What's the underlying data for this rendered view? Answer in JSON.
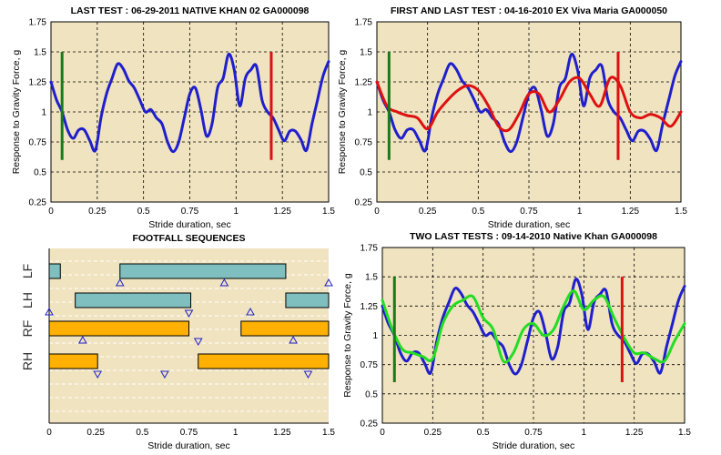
{
  "chart_data": [
    {
      "type": "line",
      "title": "LAST TEST : 06-29-2011 NATIVE KHAN 02 GA000098",
      "xlabel": "Stride duration, sec",
      "ylabel": "Response to Gravity Force, g",
      "xlim": [
        0,
        1.5
      ],
      "ylim": [
        0.25,
        1.75
      ],
      "x_ticks": [
        "0",
        "0.25",
        "0.5",
        "0.75",
        "1",
        "1.25",
        "1.5"
      ],
      "y_ticks": [
        "0.25",
        "0.5",
        "0.75",
        "1",
        "1.25",
        "1.5",
        "1.75"
      ],
      "grid": true,
      "markers": [
        {
          "x": 0.06,
          "y1": 0.6,
          "y2": 1.5,
          "color": "#1a7a1a"
        },
        {
          "x": 1.19,
          "y1": 0.6,
          "y2": 1.5,
          "color": "#dd1111"
        }
      ],
      "series": [
        {
          "color": "#1f1fcc",
          "x": [
            0,
            0.03,
            0.06,
            0.09,
            0.12,
            0.15,
            0.18,
            0.21,
            0.24,
            0.27,
            0.3,
            0.33,
            0.36,
            0.39,
            0.42,
            0.45,
            0.48,
            0.51,
            0.54,
            0.57,
            0.6,
            0.63,
            0.66,
            0.69,
            0.72,
            0.75,
            0.78,
            0.81,
            0.84,
            0.87,
            0.9,
            0.93,
            0.96,
            0.99,
            1.02,
            1.05,
            1.08,
            1.11,
            1.14,
            1.17,
            1.2,
            1.23,
            1.26,
            1.29,
            1.32,
            1.35,
            1.38,
            1.41,
            1.44,
            1.47,
            1.5
          ],
          "y": [
            1.25,
            1.1,
            1.0,
            0.85,
            0.78,
            0.85,
            0.85,
            0.76,
            0.68,
            0.95,
            1.15,
            1.28,
            1.4,
            1.36,
            1.26,
            1.2,
            1.1,
            1.0,
            1.02,
            0.95,
            0.9,
            0.75,
            0.67,
            0.75,
            0.95,
            1.15,
            1.2,
            1.02,
            0.8,
            0.9,
            1.2,
            1.28,
            1.48,
            1.35,
            1.05,
            1.28,
            1.35,
            1.38,
            1.1,
            1.0,
            0.95,
            0.85,
            0.76,
            0.84,
            0.84,
            0.77,
            0.68,
            0.9,
            1.1,
            1.3,
            1.42
          ]
        }
      ]
    },
    {
      "type": "line",
      "title": "FIRST AND LAST TEST : 04-16-2010 EX Viva Maria GA000050",
      "xlabel": "Stride duration, sec",
      "ylabel": "Response to Gravity Force, g",
      "xlim": [
        0,
        1.5
      ],
      "ylim": [
        0.25,
        1.75
      ],
      "x_ticks": [
        "0",
        "0.25",
        "0.5",
        "0.75",
        "1",
        "1.25",
        "1.5"
      ],
      "y_ticks": [
        "0.25",
        "0.5",
        "0.75",
        "1",
        "1.25",
        "1.5",
        "1.75"
      ],
      "grid": true,
      "markers": [
        {
          "x": 0.06,
          "y1": 0.6,
          "y2": 1.5,
          "color": "#1a7a1a"
        },
        {
          "x": 1.19,
          "y1": 0.6,
          "y2": 1.5,
          "color": "#dd1111"
        }
      ],
      "series": [
        {
          "color": "#1f1fcc",
          "x": [
            0,
            0.03,
            0.06,
            0.09,
            0.12,
            0.15,
            0.18,
            0.21,
            0.24,
            0.27,
            0.3,
            0.33,
            0.36,
            0.39,
            0.42,
            0.45,
            0.48,
            0.51,
            0.54,
            0.57,
            0.6,
            0.63,
            0.66,
            0.69,
            0.72,
            0.75,
            0.78,
            0.81,
            0.84,
            0.87,
            0.9,
            0.93,
            0.96,
            0.99,
            1.02,
            1.05,
            1.08,
            1.11,
            1.14,
            1.17,
            1.2,
            1.23,
            1.26,
            1.29,
            1.32,
            1.35,
            1.38,
            1.41,
            1.44,
            1.47,
            1.5
          ],
          "y": [
            1.25,
            1.1,
            1.0,
            0.85,
            0.78,
            0.85,
            0.85,
            0.76,
            0.68,
            0.95,
            1.15,
            1.28,
            1.4,
            1.36,
            1.26,
            1.2,
            1.1,
            1.0,
            1.02,
            0.95,
            0.9,
            0.75,
            0.67,
            0.75,
            0.95,
            1.15,
            1.2,
            1.02,
            0.8,
            0.9,
            1.2,
            1.28,
            1.48,
            1.35,
            1.05,
            1.28,
            1.35,
            1.38,
            1.1,
            1.0,
            0.95,
            0.85,
            0.76,
            0.84,
            0.84,
            0.77,
            0.68,
            0.9,
            1.1,
            1.3,
            1.42
          ]
        },
        {
          "color": "#dd1111",
          "x": [
            0,
            0.05,
            0.1,
            0.15,
            0.2,
            0.25,
            0.3,
            0.35,
            0.4,
            0.45,
            0.5,
            0.55,
            0.6,
            0.65,
            0.7,
            0.75,
            0.8,
            0.85,
            0.9,
            0.95,
            1.0,
            1.05,
            1.1,
            1.15,
            1.2,
            1.25,
            1.3,
            1.35,
            1.4,
            1.45,
            1.5
          ],
          "y": [
            1.25,
            1.05,
            1.0,
            0.97,
            0.95,
            0.86,
            1.0,
            1.1,
            1.18,
            1.22,
            1.18,
            1.05,
            0.88,
            0.85,
            0.98,
            1.15,
            1.15,
            1.0,
            1.1,
            1.25,
            1.28,
            1.15,
            1.05,
            1.28,
            1.22,
            1.0,
            0.95,
            0.98,
            0.95,
            0.88,
            1.0
          ]
        }
      ]
    },
    {
      "type": "gantt",
      "title": "FOOTFALL SEQUENCES",
      "xlabel": "Stride duration, sec",
      "xlim": [
        0,
        1.5
      ],
      "x_ticks": [
        "0",
        "0.25",
        "0.5",
        "0.75",
        "1",
        "1.25",
        "1.5"
      ],
      "rows": [
        "LF",
        "LH",
        "RF",
        "RH"
      ],
      "intervals": [
        {
          "row": "LF",
          "start": 0.0,
          "end": 0.06,
          "color": "#7fbfbf"
        },
        {
          "row": "LF",
          "start": 0.38,
          "end": 1.27,
          "color": "#7fbfbf"
        },
        {
          "row": "LH",
          "start": 0.14,
          "end": 0.76,
          "color": "#7fbfbf"
        },
        {
          "row": "LH",
          "start": 1.27,
          "end": 1.5,
          "color": "#7fbfbf"
        },
        {
          "row": "RF",
          "start": 0.0,
          "end": 0.75,
          "color": "#ffb000"
        },
        {
          "row": "RF",
          "start": 1.03,
          "end": 1.5,
          "color": "#ffb000"
        },
        {
          "row": "RH",
          "start": 0.0,
          "end": 0.26,
          "color": "#ffb000"
        },
        {
          "row": "RH",
          "start": 0.8,
          "end": 1.5,
          "color": "#ffb000"
        }
      ],
      "events": [
        {
          "x": 0.38,
          "row": "LF",
          "dir": "up"
        },
        {
          "x": 0.94,
          "row": "LF",
          "dir": "up"
        },
        {
          "x": 1.5,
          "row": "LF",
          "dir": "up"
        },
        {
          "x": 0.0,
          "row": "LH",
          "dir": "up"
        },
        {
          "x": 0.75,
          "row": "LH",
          "dir": "down"
        },
        {
          "x": 1.08,
          "row": "LH",
          "dir": "up"
        },
        {
          "x": 0.18,
          "row": "RF",
          "dir": "up"
        },
        {
          "x": 0.8,
          "row": "RF",
          "dir": "down"
        },
        {
          "x": 1.31,
          "row": "RF",
          "dir": "up"
        },
        {
          "x": 0.26,
          "row": "RH",
          "dir": "down"
        },
        {
          "x": 0.62,
          "row": "RH",
          "dir": "down"
        },
        {
          "x": 1.39,
          "row": "RH",
          "dir": "down"
        }
      ]
    },
    {
      "type": "line",
      "title": "TWO LAST TESTS : 09-14-2010 Native Khan GA000098",
      "xlabel": "Stride duration, sec",
      "ylabel": "Response to Gravity Force, g",
      "xlim": [
        0,
        1.5
      ],
      "ylim": [
        0.25,
        1.75
      ],
      "x_ticks": [
        "0",
        "0.25",
        "0.5",
        "0.75",
        "1",
        "1.25",
        "1.5"
      ],
      "y_ticks": [
        "0.25",
        "0.5",
        "0.75",
        "1",
        "1.25",
        "1.5",
        "1.75"
      ],
      "grid": true,
      "markers": [
        {
          "x": 0.06,
          "y1": 0.6,
          "y2": 1.5,
          "color": "#1a7a1a"
        },
        {
          "x": 1.19,
          "y1": 0.6,
          "y2": 1.5,
          "color": "#dd1111"
        }
      ],
      "series": [
        {
          "color": "#1f1fcc",
          "x": [
            0,
            0.03,
            0.06,
            0.09,
            0.12,
            0.15,
            0.18,
            0.21,
            0.24,
            0.27,
            0.3,
            0.33,
            0.36,
            0.39,
            0.42,
            0.45,
            0.48,
            0.51,
            0.54,
            0.57,
            0.6,
            0.63,
            0.66,
            0.69,
            0.72,
            0.75,
            0.78,
            0.81,
            0.84,
            0.87,
            0.9,
            0.93,
            0.96,
            0.99,
            1.02,
            1.05,
            1.08,
            1.11,
            1.14,
            1.17,
            1.2,
            1.23,
            1.26,
            1.29,
            1.32,
            1.35,
            1.38,
            1.41,
            1.44,
            1.47,
            1.5
          ],
          "y": [
            1.25,
            1.1,
            1.0,
            0.85,
            0.78,
            0.85,
            0.85,
            0.76,
            0.68,
            0.95,
            1.15,
            1.28,
            1.4,
            1.36,
            1.26,
            1.2,
            1.1,
            1.0,
            1.02,
            0.95,
            0.9,
            0.75,
            0.67,
            0.75,
            0.95,
            1.15,
            1.2,
            1.02,
            0.8,
            0.9,
            1.2,
            1.28,
            1.48,
            1.35,
            1.05,
            1.28,
            1.35,
            1.38,
            1.1,
            1.0,
            0.95,
            0.85,
            0.76,
            0.84,
            0.84,
            0.77,
            0.68,
            0.9,
            1.1,
            1.3,
            1.42
          ]
        },
        {
          "color": "#22dd22",
          "x": [
            0,
            0.05,
            0.1,
            0.15,
            0.2,
            0.25,
            0.3,
            0.35,
            0.4,
            0.45,
            0.5,
            0.55,
            0.6,
            0.65,
            0.7,
            0.75,
            0.8,
            0.85,
            0.9,
            0.95,
            1.0,
            1.05,
            1.1,
            1.15,
            1.2,
            1.25,
            1.3,
            1.35,
            1.4,
            1.45,
            1.5
          ],
          "y": [
            1.3,
            1.05,
            0.88,
            0.85,
            0.82,
            0.8,
            1.1,
            1.25,
            1.3,
            1.33,
            1.15,
            1.05,
            0.78,
            0.85,
            1.05,
            1.1,
            1.0,
            1.05,
            1.25,
            1.38,
            1.22,
            1.3,
            1.33,
            1.15,
            0.98,
            0.85,
            0.85,
            0.8,
            0.78,
            0.95,
            1.1
          ]
        }
      ]
    }
  ]
}
